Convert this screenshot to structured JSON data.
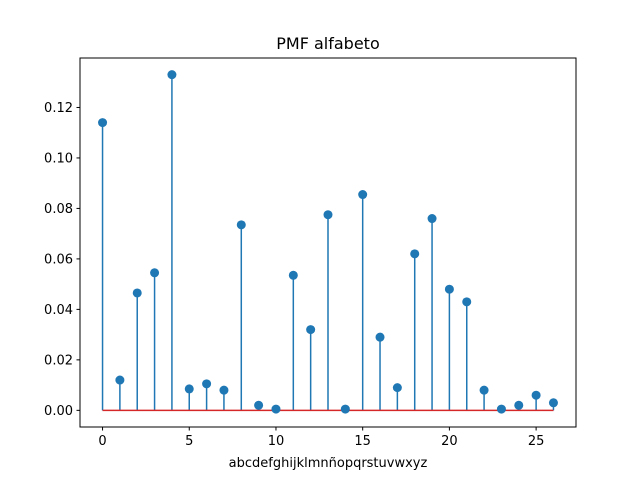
{
  "chart_data": {
    "type": "stem",
    "title": "PMF alfabeto",
    "xlabel": "abcdefghijklmnñopqrstuvwxyz",
    "ylabel": "",
    "xlim": [
      -1.3,
      27.3
    ],
    "ylim": [
      -0.0066,
      0.1396
    ],
    "xticks": [
      0,
      5,
      10,
      15,
      20,
      25
    ],
    "xtick_labels": [
      "0",
      "5",
      "10",
      "15",
      "20",
      "25"
    ],
    "yticks": [
      0.0,
      0.02,
      0.04,
      0.06,
      0.08,
      0.1,
      0.12
    ],
    "ytick_labels": [
      "0.00",
      "0.02",
      "0.04",
      "0.06",
      "0.08",
      "0.10",
      "0.12"
    ],
    "grid": false,
    "x": [
      0,
      1,
      2,
      3,
      4,
      5,
      6,
      7,
      8,
      9,
      10,
      11,
      12,
      13,
      14,
      15,
      16,
      17,
      18,
      19,
      20,
      21,
      22,
      23,
      24,
      25,
      26
    ],
    "values": [
      0.114,
      0.012,
      0.0465,
      0.0545,
      0.133,
      0.0085,
      0.0105,
      0.008,
      0.0735,
      0.002,
      0.0005,
      0.0535,
      0.032,
      0.0775,
      0.0005,
      0.0855,
      0.029,
      0.009,
      0.062,
      0.076,
      0.048,
      0.043,
      0.008,
      0.0005,
      0.002,
      0.006,
      0.003
    ],
    "marker_color": "#1f77b4",
    "stem_color": "#1f77b4",
    "baseline_color": "#d62728",
    "baseline_value": 0
  }
}
